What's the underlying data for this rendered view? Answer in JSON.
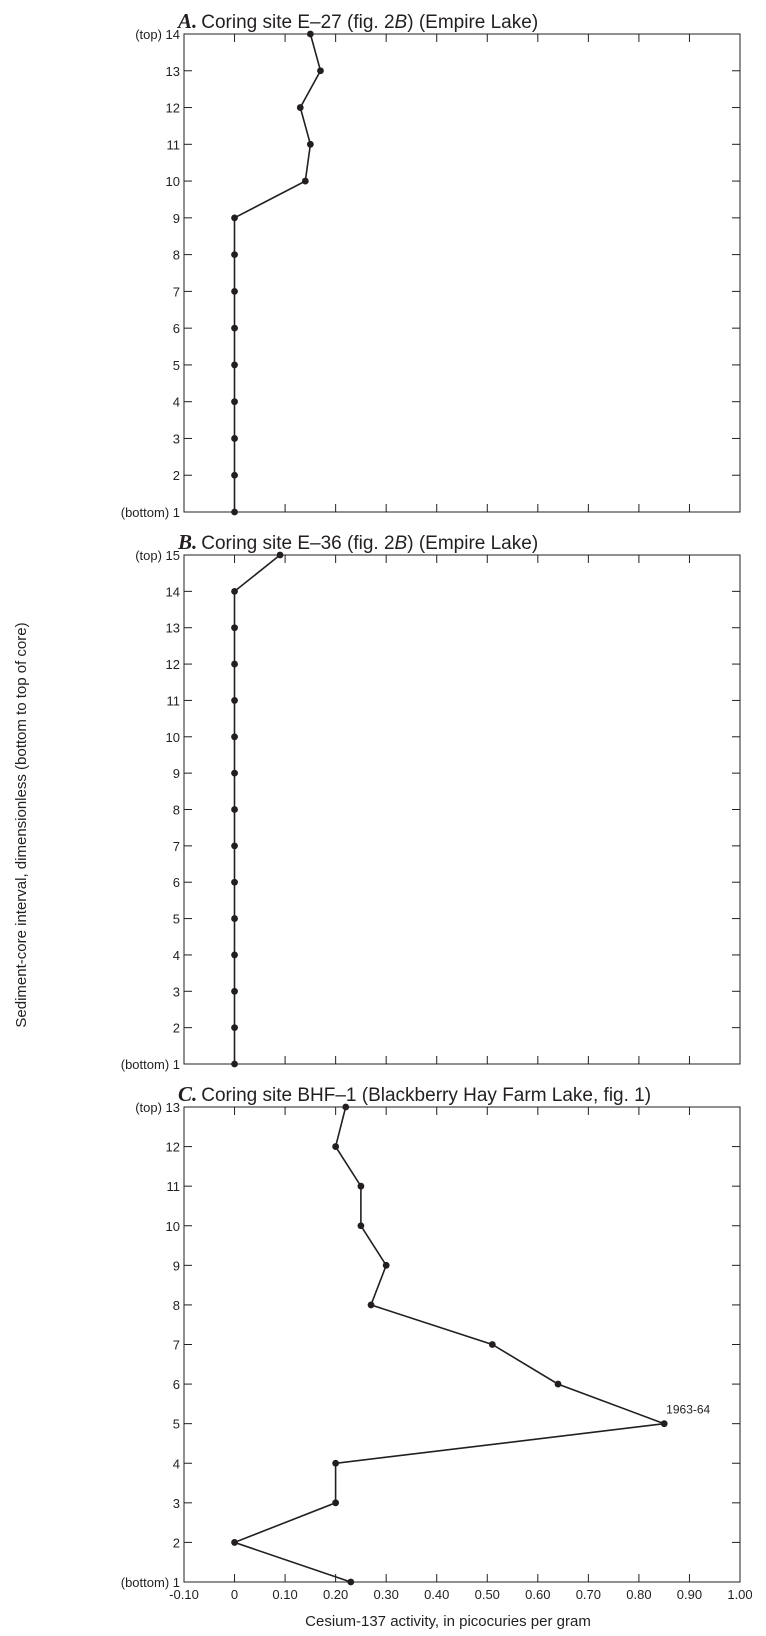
{
  "chart_data": [
    {
      "type": "line",
      "letter": "A.",
      "title_parts": [
        "Coring site E–27 (fig. 2",
        "B",
        ") (Empire Lake)"
      ],
      "x": [
        0.15,
        0.17,
        0.13,
        0.15,
        0.14,
        0,
        0,
        0,
        0,
        0,
        0,
        0,
        0,
        0
      ],
      "y": [
        14,
        13,
        12,
        11,
        10,
        9,
        8,
        7,
        6,
        5,
        4,
        3,
        2,
        1
      ],
      "xlim": [
        -0.1,
        1.0
      ],
      "ylim": [
        1,
        14
      ],
      "y_ticks": [
        "(bottom) 1",
        "2",
        "3",
        "4",
        "5",
        "6",
        "7",
        "8",
        "9",
        "10",
        "11",
        "12",
        "13",
        "(top) 14"
      ]
    },
    {
      "type": "line",
      "letter": "B.",
      "title_parts": [
        "Coring site E–36 (fig. 2",
        "B",
        ") (Empire Lake)"
      ],
      "x": [
        0.09,
        0,
        0,
        0,
        0,
        0,
        0,
        0,
        0,
        0,
        0,
        0,
        0,
        0,
        0
      ],
      "y": [
        15,
        14,
        13,
        12,
        11,
        10,
        9,
        8,
        7,
        6,
        5,
        4,
        3,
        2,
        1
      ],
      "xlim": [
        -0.1,
        1.0
      ],
      "ylim": [
        1,
        15
      ],
      "y_ticks": [
        "(bottom) 1",
        "2",
        "3",
        "4",
        "5",
        "6",
        "7",
        "8",
        "9",
        "10",
        "11",
        "12",
        "13",
        "14",
        "(top) 15"
      ]
    },
    {
      "type": "line",
      "letter": "C.",
      "title_parts": [
        "Coring site BHF–1 (Blackberry Hay Farm Lake, fig. 1)",
        "",
        ""
      ],
      "x": [
        0.22,
        0.2,
        0.25,
        0.25,
        0.3,
        0.27,
        0.51,
        0.64,
        0.85,
        0.2,
        0.2,
        0,
        0.23
      ],
      "y": [
        13,
        12,
        11,
        10,
        9,
        8,
        7,
        6,
        5,
        4,
        3,
        2,
        1
      ],
      "xlim": [
        -0.1,
        1.0
      ],
      "ylim": [
        1,
        13
      ],
      "y_ticks": [
        "(bottom) 1",
        "2",
        "3",
        "4",
        "5",
        "6",
        "7",
        "8",
        "9",
        "10",
        "11",
        "12",
        "(top) 13"
      ],
      "x_tick_labels": [
        "-0.10",
        "0",
        "0.10",
        "0.20",
        "0.30",
        "0.40",
        "0.50",
        "0.60",
        "0.70",
        "0.80",
        "0.90",
        "1.00"
      ],
      "annotations": [
        {
          "x": 0.85,
          "y": 5,
          "text": "1963-64"
        }
      ]
    }
  ],
  "axes": {
    "ylabel": "Sediment-core interval, dimensionless (bottom to top of core)",
    "xlabel": "Cesium-137 activity, in picocuries per gram"
  }
}
